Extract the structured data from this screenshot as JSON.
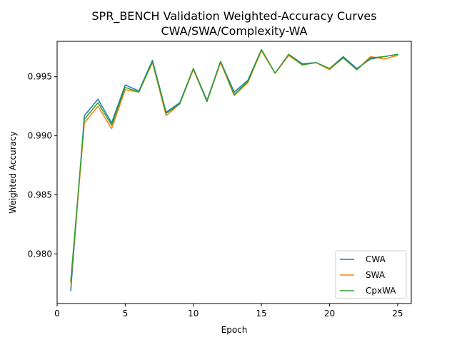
{
  "chart_data": {
    "type": "line",
    "title": "SPR_BENCH Validation Weighted-Accuracy Curves",
    "subtitle": "CWA/SWA/Complexity-WA",
    "xlabel": "Epoch",
    "ylabel": "Weighted Accuracy",
    "xlim": [
      0,
      26
    ],
    "ylim": [
      0.9758,
      0.998
    ],
    "xticks": [
      0,
      5,
      10,
      15,
      20,
      25
    ],
    "yticks": [
      0.98,
      0.985,
      0.99,
      0.995
    ],
    "ytick_labels": [
      "0.980",
      "0.985",
      "0.990",
      "0.995"
    ],
    "grid": false,
    "legend_position": "lower-right",
    "x": [
      1,
      2,
      3,
      4,
      5,
      6,
      7,
      8,
      9,
      10,
      11,
      12,
      13,
      14,
      15,
      16,
      17,
      18,
      19,
      20,
      21,
      22,
      23,
      24,
      25
    ],
    "series": [
      {
        "name": "CWA",
        "color": "#1f77b4",
        "values": [
          0.9769,
          0.9917,
          0.9931,
          0.9911,
          0.9943,
          0.9938,
          0.9964,
          0.992,
          0.9928,
          0.9957,
          0.993,
          0.9963,
          0.9937,
          0.9947,
          0.9973,
          0.9953,
          0.9969,
          0.9961,
          0.9962,
          0.9957,
          0.9967,
          0.9957,
          0.9965,
          0.9967,
          0.9969
        ]
      },
      {
        "name": "SWA",
        "color": "#ff7f0e",
        "values": [
          0.9775,
          0.9911,
          0.9925,
          0.9906,
          0.9939,
          0.9937,
          0.9962,
          0.9917,
          0.9927,
          0.9956,
          0.9929,
          0.9962,
          0.9934,
          0.9945,
          0.9972,
          0.9953,
          0.9968,
          0.996,
          0.9962,
          0.9956,
          0.9966,
          0.9956,
          0.9967,
          0.9965,
          0.9968
        ]
      },
      {
        "name": "CpxWA",
        "color": "#2ca02c",
        "values": [
          0.9777,
          0.9914,
          0.9928,
          0.9909,
          0.9941,
          0.9937,
          0.9963,
          0.9919,
          0.9927,
          0.9957,
          0.9929,
          0.9963,
          0.9935,
          0.9946,
          0.9973,
          0.9953,
          0.9969,
          0.996,
          0.9962,
          0.9957,
          0.9966,
          0.9956,
          0.9966,
          0.9967,
          0.9969
        ]
      }
    ]
  }
}
